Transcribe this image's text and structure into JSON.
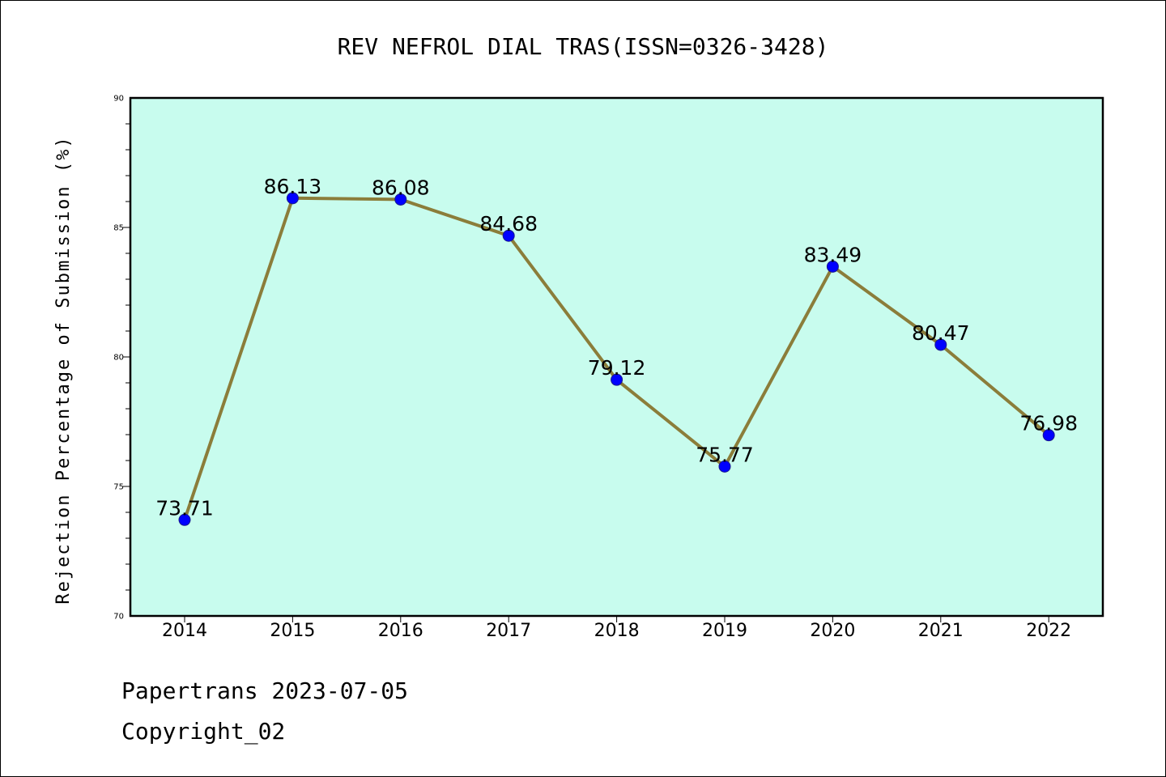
{
  "chart_data": {
    "type": "line",
    "title": "REV NEFROL DIAL TRAS(ISSN=0326-3428)",
    "ylabel": "Rejection Percentage of Submission (%)",
    "xlabel": "",
    "categories": [
      "2014",
      "2015",
      "2016",
      "2017",
      "2018",
      "2019",
      "2020",
      "2021",
      "2022"
    ],
    "series": [
      {
        "values": [
          73.71,
          86.13,
          86.08,
          84.68,
          79.12,
          75.77,
          83.49,
          80.47,
          76.98
        ]
      }
    ],
    "data_labels": [
      "73.71",
      "86.13",
      "86.08",
      "84.68",
      "79.12",
      "75.77",
      "83.49",
      "80.47",
      "76.98"
    ],
    "ylim": [
      70,
      90
    ],
    "y_ticks": [
      "70",
      "75",
      "80",
      "85",
      "90"
    ],
    "grid": false,
    "colors": {
      "plot_background": "#c8fcee",
      "line": "#8b7d3a",
      "marker": "#0000ff"
    }
  },
  "footer": {
    "date_line": "Papertrans 2023-07-05",
    "copyright_line": "Copyright_02"
  }
}
